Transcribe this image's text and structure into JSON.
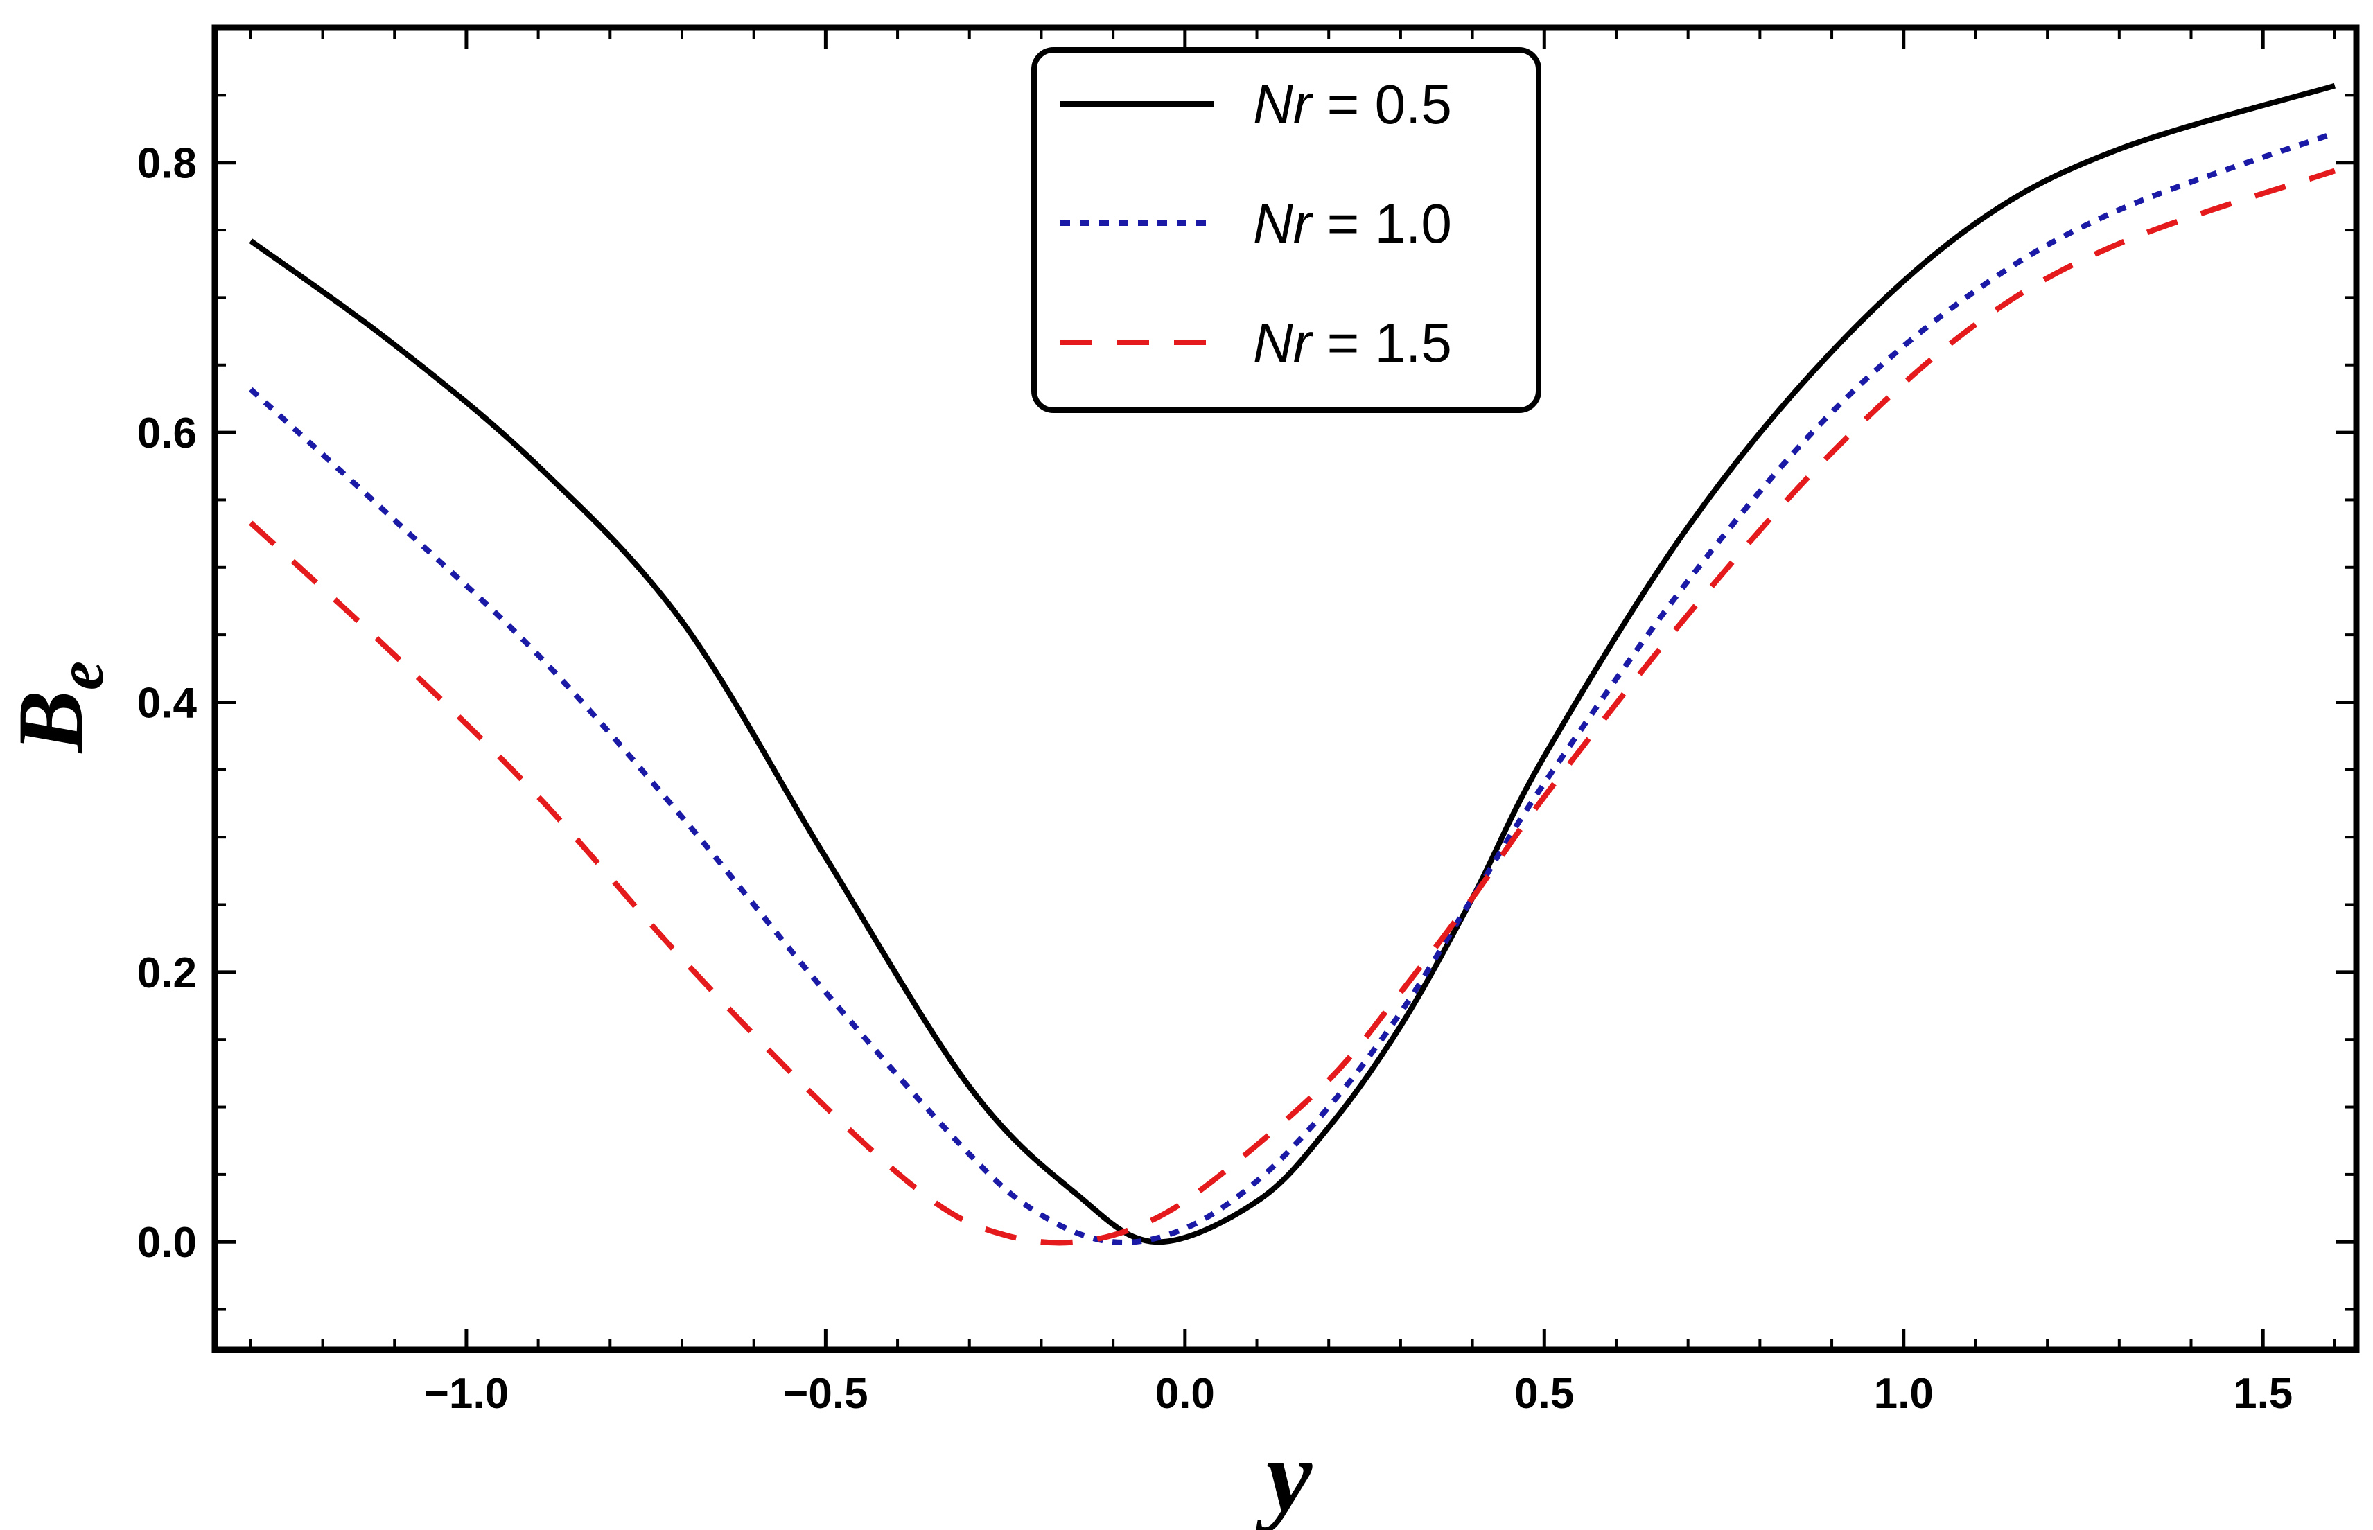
{
  "chart_data": {
    "type": "line",
    "title": "",
    "xlabel": "y",
    "ylabel": "B",
    "ylabel_subscript": "e",
    "xlim": [
      -1.35,
      1.63
    ],
    "ylim": [
      -0.08,
      0.9
    ],
    "xticks": [
      -1.0,
      -0.5,
      0.0,
      0.5,
      1.0,
      1.5
    ],
    "xtick_labels": [
      "−1.0",
      "−0.5",
      "0.0",
      "0.5",
      "1.0",
      "1.5"
    ],
    "yticks": [
      0.0,
      0.2,
      0.4,
      0.6,
      0.8
    ],
    "ytick_labels": [
      "0.0",
      "0.2",
      "0.4",
      "0.6",
      "0.8"
    ],
    "grid": false,
    "legend_position": "top-center",
    "series": [
      {
        "name": "Nr = 0.5",
        "legend_var": "Nr",
        "legend_rest": " = 0.5",
        "color": "#000000",
        "style": "solid",
        "x": [
          -1.3,
          -1.1,
          -0.9,
          -0.7,
          -0.5,
          -0.3,
          -0.15,
          -0.04,
          0.1,
          0.2,
          0.3,
          0.4,
          0.5,
          0.7,
          0.9,
          1.1,
          1.3,
          1.6
        ],
        "y": [
          0.742,
          0.665,
          0.575,
          0.46,
          0.285,
          0.115,
          0.035,
          0.0,
          0.03,
          0.085,
          0.16,
          0.255,
          0.36,
          0.53,
          0.66,
          0.755,
          0.81,
          0.857
        ]
      },
      {
        "name": "Nr = 1.0",
        "legend_var": "Nr",
        "legend_rest": " = 1.0",
        "color": "#1a1aa6",
        "style": "dotted",
        "x": [
          -1.3,
          -1.1,
          -0.9,
          -0.7,
          -0.5,
          -0.3,
          -0.2,
          -0.1,
          0.0,
          0.1,
          0.2,
          0.3,
          0.4,
          0.5,
          0.7,
          0.9,
          1.1,
          1.3,
          1.6
        ],
        "y": [
          0.632,
          0.535,
          0.435,
          0.315,
          0.185,
          0.065,
          0.02,
          0.0,
          0.01,
          0.045,
          0.1,
          0.17,
          0.255,
          0.34,
          0.49,
          0.615,
          0.705,
          0.765,
          0.822
        ]
      },
      {
        "name": "Nr = 1.5",
        "legend_var": "Nr",
        "legend_rest": " = 1.5",
        "color": "#e41a1c",
        "style": "dashed",
        "x": [
          -1.3,
          -1.1,
          -0.9,
          -0.7,
          -0.5,
          -0.35,
          -0.25,
          -0.15,
          -0.05,
          0.05,
          0.2,
          0.3,
          0.4,
          0.5,
          0.7,
          0.9,
          1.1,
          1.3,
          1.6
        ],
        "y": [
          0.533,
          0.435,
          0.33,
          0.21,
          0.1,
          0.03,
          0.005,
          0.0,
          0.015,
          0.05,
          0.12,
          0.185,
          0.255,
          0.33,
          0.465,
          0.585,
          0.68,
          0.74,
          0.794
        ]
      }
    ]
  }
}
